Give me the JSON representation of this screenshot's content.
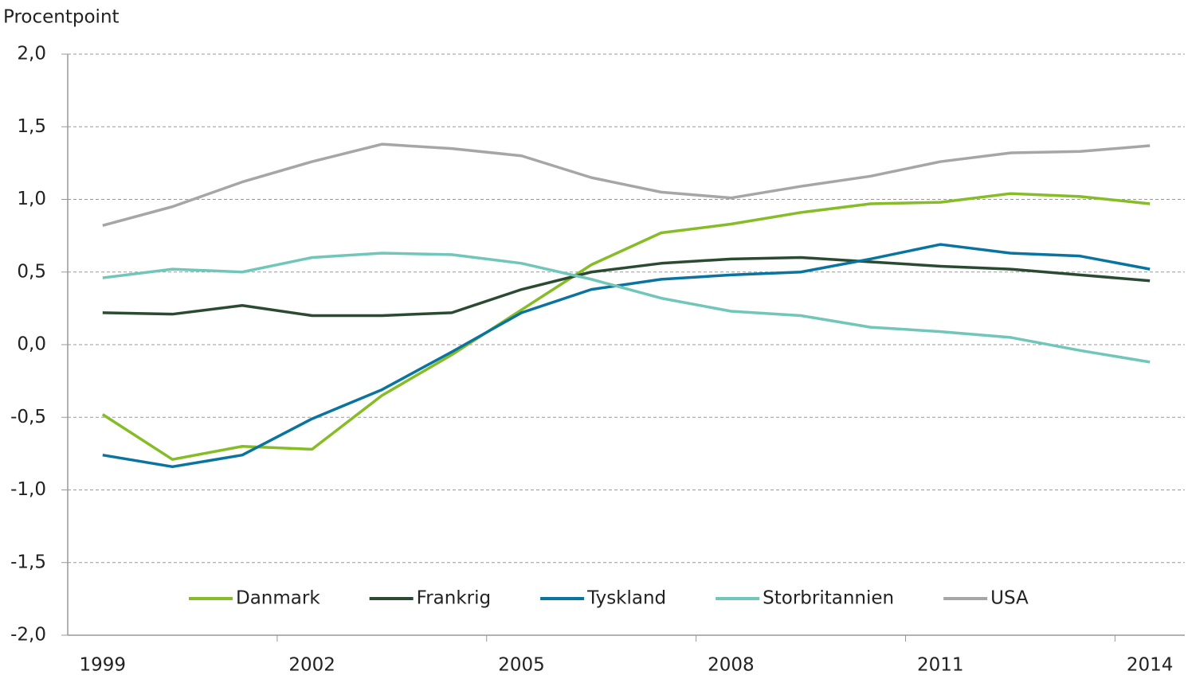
{
  "chart_data": {
    "type": "line",
    "ylabel": "Procentpoint",
    "categories": [
      "1999",
      null,
      null,
      "2002",
      null,
      null,
      "2005",
      null,
      null,
      "2008",
      null,
      null,
      "2011",
      null,
      null,
      "2014"
    ],
    "series": [
      {
        "name": "Danmark",
        "color": "#86bc25",
        "values": [
          -0.48,
          -0.79,
          -0.7,
          -0.72,
          -0.35,
          -0.07,
          0.24,
          0.55,
          0.77,
          0.83,
          0.91,
          0.97,
          0.98,
          1.04,
          1.02,
          0.97
        ]
      },
      {
        "name": "Frankrig",
        "color": "#2b4a32",
        "values": [
          0.22,
          0.21,
          0.27,
          0.2,
          0.2,
          0.22,
          0.38,
          0.5,
          0.56,
          0.59,
          0.6,
          0.57,
          0.54,
          0.52,
          0.48,
          0.44
        ]
      },
      {
        "name": "Tyskland",
        "color": "#0a74a0",
        "values": [
          -0.76,
          -0.84,
          -0.76,
          -0.51,
          -0.31,
          -0.05,
          0.22,
          0.38,
          0.45,
          0.48,
          0.5,
          0.59,
          0.69,
          0.63,
          0.61,
          0.52
        ]
      },
      {
        "name": "Storbritannien",
        "color": "#70c6b9",
        "values": [
          0.46,
          0.52,
          0.5,
          0.6,
          0.63,
          0.62,
          0.56,
          0.45,
          0.32,
          0.23,
          0.2,
          0.12,
          0.09,
          0.05,
          -0.04,
          -0.12
        ]
      },
      {
        "name": "USA",
        "color": "#a6a6a6",
        "values": [
          0.82,
          0.95,
          1.12,
          1.26,
          1.38,
          1.35,
          1.3,
          1.15,
          1.05,
          1.01,
          1.09,
          1.16,
          1.26,
          1.32,
          1.33,
          1.37
        ]
      }
    ],
    "ylim": [
      -2,
      2
    ],
    "yticks": [
      {
        "value": -2,
        "label": "-2,0"
      },
      {
        "value": -1.5,
        "label": "-1,5"
      },
      {
        "value": -1,
        "label": "-1,0"
      },
      {
        "value": -0.5,
        "label": "-0,5"
      },
      {
        "value": 0,
        "label": "0,0"
      },
      {
        "value": 0.5,
        "label": "0,5"
      },
      {
        "value": 1,
        "label": "1,0"
      },
      {
        "value": 1.5,
        "label": "1,5"
      },
      {
        "value": 2,
        "label": "2,0"
      }
    ],
    "grid": true,
    "legend": "bottom"
  }
}
